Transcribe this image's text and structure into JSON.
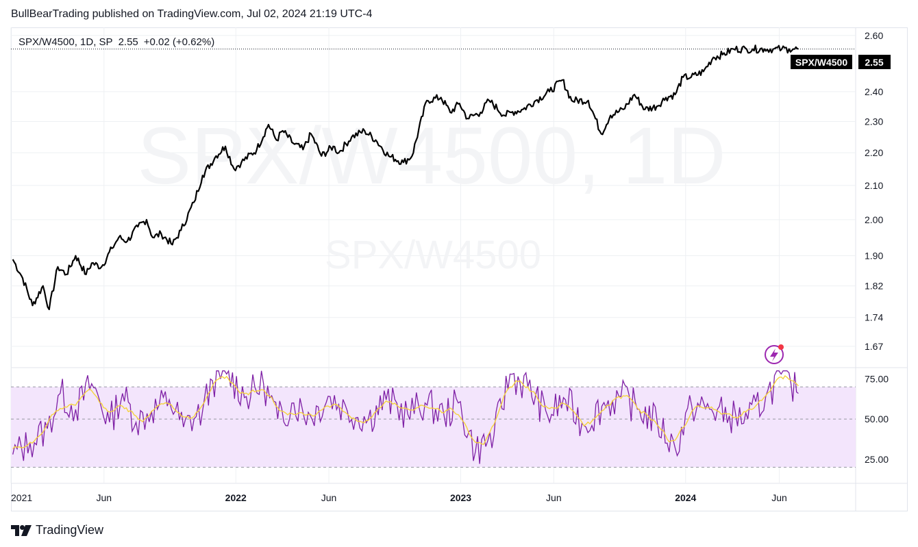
{
  "header": {
    "published_line": "BullBearTrading published on TradingView.com, Jul 02, 2024 21:19 UTC-4"
  },
  "legend": {
    "symbol": "SPX/W4500, 1D, SP",
    "last": "2.55",
    "change": "+0.02 (+0.62%)"
  },
  "price_tag": {
    "label": "SPX/W4500",
    "value": "2.55"
  },
  "watermark": {
    "big": "SPX/W4500, 1D",
    "small": "SPX/W4500"
  },
  "footer": {
    "brand": "TradingView"
  },
  "colors": {
    "price_line": "#000000",
    "rsi_line": "#7e1fa5",
    "rsi_ma": "#f5d33b",
    "rsi_band": "#f3e5fc",
    "grid": "#eef0f3",
    "axis_text": "#131722",
    "alert_icon": "#9c27b0",
    "alert_dot": "#f23645"
  },
  "chart_data": [
    {
      "type": "line",
      "series": [
        {
          "name": "SPX/W4500",
          "x": [
            "2021-01-04",
            "2021-01-20",
            "2021-02-05",
            "2021-02-22",
            "2021-03-04",
            "2021-03-18",
            "2021-04-01",
            "2021-04-16",
            "2021-05-03",
            "2021-05-12",
            "2021-05-28",
            "2021-06-14",
            "2021-06-25",
            "2021-07-09",
            "2021-07-26",
            "2021-08-09",
            "2021-08-19",
            "2021-09-02",
            "2021-09-20",
            "2021-10-04",
            "2021-10-25",
            "2021-11-08",
            "2021-11-30",
            "2021-12-15",
            "2021-12-29",
            "2022-01-10",
            "2022-02-04",
            "2022-02-23",
            "2022-03-08",
            "2022-03-18",
            "2022-04-04",
            "2022-04-20",
            "2022-05-03",
            "2022-05-20",
            "2022-06-08",
            "2022-06-17",
            "2022-07-08",
            "2022-07-29",
            "2022-08-16",
            "2022-09-06",
            "2022-09-30",
            "2022-10-14",
            "2022-11-07",
            "2022-11-30",
            "2022-12-15",
            "2022-12-30",
            "2023-01-12",
            "2023-02-02",
            "2023-02-16",
            "2023-03-13",
            "2023-03-24",
            "2023-04-12",
            "2023-05-03",
            "2023-05-25",
            "2023-06-15",
            "2023-06-30",
            "2023-07-27",
            "2023-08-17",
            "2023-09-01",
            "2023-09-22",
            "2023-10-10",
            "2023-10-27",
            "2023-11-15",
            "2023-11-30",
            "2023-12-15",
            "2023-12-28",
            "2024-01-10",
            "2024-01-30",
            "2024-02-15",
            "2024-03-01",
            "2024-03-19",
            "2024-04-09",
            "2024-04-19",
            "2024-05-08",
            "2024-05-22",
            "2024-06-05",
            "2024-06-17",
            "2024-06-26",
            "2024-07-02"
          ],
          "values": [
            1.89,
            1.84,
            1.77,
            1.82,
            1.76,
            1.87,
            1.85,
            1.9,
            1.85,
            1.88,
            1.87,
            1.92,
            1.95,
            1.94,
            1.98,
            2.0,
            1.95,
            1.96,
            1.93,
            1.97,
            2.05,
            2.13,
            2.19,
            2.22,
            2.15,
            2.17,
            2.21,
            2.29,
            2.24,
            2.27,
            2.23,
            2.21,
            2.26,
            2.19,
            2.22,
            2.2,
            2.25,
            2.27,
            2.24,
            2.19,
            2.17,
            2.19,
            2.37,
            2.38,
            2.33,
            2.36,
            2.31,
            2.33,
            2.37,
            2.32,
            2.33,
            2.34,
            2.37,
            2.4,
            2.44,
            2.37,
            2.37,
            2.26,
            2.32,
            2.34,
            2.39,
            2.34,
            2.35,
            2.38,
            2.39,
            2.45,
            2.45,
            2.47,
            2.52,
            2.53,
            2.55,
            2.55,
            2.55,
            2.55,
            2.55,
            2.55,
            2.55,
            2.55,
            2.55
          ]
        }
      ],
      "xlabel": "",
      "ylabel": "",
      "ylim": [
        1.62,
        2.63
      ],
      "y_scale": "log",
      "y_ticks": [
        "2.60",
        "2.40",
        "2.30",
        "2.20",
        "2.10",
        "2.00",
        "1.90",
        "1.82",
        "1.74",
        "1.67"
      ],
      "x_ticks": [
        "2021",
        "Jun",
        "2022",
        "Jun",
        "2023",
        "Jun",
        "2024",
        "Jun"
      ],
      "x_ticks_bold": [
        false,
        false,
        true,
        false,
        true,
        false,
        true,
        false
      ],
      "grid": true,
      "legend": "top-left"
    },
    {
      "type": "line",
      "series": [
        {
          "name": "RSI",
          "x": [
            "2021-01-04",
            "2021-02-01",
            "2021-03-01",
            "2021-03-22",
            "2021-04-16",
            "2021-05-12",
            "2021-06-10",
            "2021-07-01",
            "2021-07-23",
            "2021-08-17",
            "2021-09-15",
            "2021-10-08",
            "2021-11-08",
            "2021-11-24",
            "2021-12-17",
            "2022-01-18",
            "2022-02-15",
            "2022-03-10",
            "2022-04-05",
            "2022-05-02",
            "2022-06-03",
            "2022-07-01",
            "2022-08-04",
            "2022-09-02",
            "2022-10-07",
            "2022-11-04",
            "2022-12-05",
            "2022-12-28",
            "2023-01-25",
            "2023-02-24",
            "2023-03-22",
            "2023-04-20",
            "2023-05-22",
            "2023-06-20",
            "2023-07-20",
            "2023-08-18",
            "2023-09-18",
            "2023-10-18",
            "2023-11-16",
            "2023-12-15",
            "2024-01-11",
            "2024-02-12",
            "2024-03-12",
            "2024-04-11",
            "2024-05-10",
            "2024-06-04",
            "2024-06-20",
            "2024-07-02"
          ],
          "values": [
            28,
            35,
            44,
            66,
            56,
            72,
            48,
            66,
            48,
            55,
            62,
            45,
            55,
            74,
            78,
            64,
            72,
            50,
            60,
            52,
            64,
            55,
            50,
            62,
            53,
            60,
            52,
            60,
            30,
            40,
            78,
            70,
            52,
            62,
            46,
            58,
            64,
            56,
            48,
            32,
            58,
            56,
            52,
            50,
            64,
            78,
            72,
            66
          ]
        }
      ],
      "ylim": [
        10,
        82
      ],
      "y_ticks": [
        "75.00",
        "50.00",
        "25.00"
      ],
      "band": [
        20,
        70
      ],
      "middle_line": 50,
      "xlabel": "",
      "ylabel": ""
    }
  ]
}
